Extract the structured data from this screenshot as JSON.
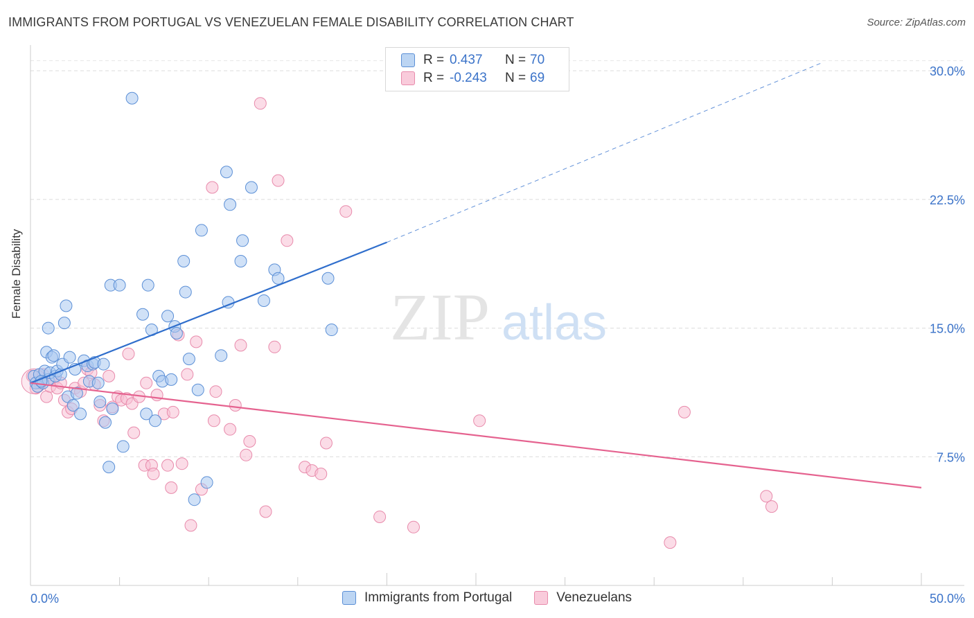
{
  "title": "IMMIGRANTS FROM PORTUGAL VS VENEZUELAN FEMALE DISABILITY CORRELATION CHART",
  "source": "Source: ZipAtlas.com",
  "watermark": {
    "zip": "ZIP",
    "atlas": "atlas"
  },
  "legend": {
    "rows": [
      {
        "r_label": "R =",
        "r_value": "0.437",
        "n_label": "N =",
        "n_value": "70"
      },
      {
        "r_label": "R =",
        "r_value": "-0.243",
        "n_label": "N =",
        "n_value": "69"
      }
    ]
  },
  "bottom_legend": [
    "Immigrants from Portugal",
    "Venezuelans"
  ],
  "chart_data": {
    "type": "scatter",
    "title": "IMMIGRANTS FROM PORTUGAL VS VENEZUELAN FEMALE DISABILITY CORRELATION CHART",
    "xlabel": "",
    "ylabel": "Female Disability",
    "xlim": [
      0,
      50
    ],
    "ylim": [
      0,
      31.5
    ],
    "x_tick_labels": [
      "0.0%",
      "50.0%"
    ],
    "y_ticks": [
      7.5,
      15.0,
      22.5,
      30.0
    ],
    "y_tick_labels": [
      "7.5%",
      "15.0%",
      "22.5%",
      "30.0%"
    ],
    "grid": "horizontal dashed",
    "legend_position": "top-center",
    "colors": {
      "portugal_fill": "#a9c8f0",
      "portugal_stroke": "#5b8fd6",
      "portugal_line": "#2f6ecc",
      "venezuela_fill": "#f7bfd3",
      "venezuela_stroke": "#e88aab",
      "venezuela_line": "#e5628f",
      "accent_text": "#3b73c9"
    },
    "series": [
      {
        "name": "Immigrants from Portugal",
        "r": 0.437,
        "n": 70,
        "trend": {
          "x": [
            0,
            20
          ],
          "y": [
            11.8,
            20.0
          ],
          "dashed_extension_to": [
            44.5,
            30.5
          ]
        },
        "points": [
          [
            0.2,
            12.2
          ],
          [
            0.3,
            11.8
          ],
          [
            0.4,
            11.6
          ],
          [
            0.5,
            12.3
          ],
          [
            0.7,
            11.8
          ],
          [
            0.8,
            12.5
          ],
          [
            0.9,
            13.6
          ],
          [
            1.0,
            12.0
          ],
          [
            1.0,
            15.0
          ],
          [
            1.1,
            12.4
          ],
          [
            1.2,
            13.3
          ],
          [
            1.3,
            13.4
          ],
          [
            1.4,
            12.2
          ],
          [
            1.5,
            12.5
          ],
          [
            1.7,
            12.3
          ],
          [
            1.8,
            12.9
          ],
          [
            1.9,
            15.3
          ],
          [
            2.0,
            16.3
          ],
          [
            2.1,
            11.0
          ],
          [
            2.2,
            13.3
          ],
          [
            2.4,
            10.5
          ],
          [
            2.5,
            12.6
          ],
          [
            2.6,
            11.2
          ],
          [
            2.8,
            10.0
          ],
          [
            3.0,
            13.1
          ],
          [
            3.2,
            12.8
          ],
          [
            3.3,
            11.9
          ],
          [
            3.5,
            12.9
          ],
          [
            3.6,
            13.0
          ],
          [
            3.8,
            11.8
          ],
          [
            3.9,
            10.7
          ],
          [
            4.1,
            12.9
          ],
          [
            4.2,
            9.5
          ],
          [
            4.4,
            6.9
          ],
          [
            4.6,
            10.3
          ],
          [
            4.5,
            17.5
          ],
          [
            5.0,
            17.5
          ],
          [
            5.2,
            8.1
          ],
          [
            5.7,
            28.4
          ],
          [
            6.3,
            15.8
          ],
          [
            6.5,
            10.0
          ],
          [
            6.6,
            17.5
          ],
          [
            6.8,
            14.9
          ],
          [
            7.0,
            9.6
          ],
          [
            7.2,
            12.2
          ],
          [
            7.4,
            11.9
          ],
          [
            7.7,
            15.7
          ],
          [
            7.9,
            12.0
          ],
          [
            8.1,
            15.1
          ],
          [
            8.2,
            14.7
          ],
          [
            8.6,
            18.9
          ],
          [
            8.7,
            17.1
          ],
          [
            8.9,
            13.2
          ],
          [
            9.2,
            5.0
          ],
          [
            9.4,
            11.4
          ],
          [
            9.6,
            20.7
          ],
          [
            9.9,
            6.0
          ],
          [
            10.7,
            13.4
          ],
          [
            11.0,
            24.1
          ],
          [
            11.1,
            16.5
          ],
          [
            11.2,
            22.2
          ],
          [
            11.8,
            18.9
          ],
          [
            11.9,
            20.1
          ],
          [
            12.4,
            23.2
          ],
          [
            13.1,
            16.6
          ],
          [
            13.7,
            18.4
          ],
          [
            13.9,
            17.9
          ],
          [
            16.7,
            17.9
          ],
          [
            16.9,
            14.9
          ],
          [
            0.6,
            11.9
          ]
        ]
      },
      {
        "name": "Venezuelans",
        "r": -0.243,
        "n": 69,
        "trend": {
          "x": [
            0,
            50
          ],
          "y": [
            11.8,
            5.7
          ]
        },
        "points": [
          [
            0.1,
            12.2
          ],
          [
            0.3,
            11.5
          ],
          [
            0.5,
            11.8
          ],
          [
            0.7,
            12.3
          ],
          [
            0.9,
            11.0
          ],
          [
            1.1,
            11.6
          ],
          [
            1.3,
            12.0
          ],
          [
            1.5,
            11.5
          ],
          [
            1.7,
            11.8
          ],
          [
            1.9,
            10.8
          ],
          [
            2.1,
            10.1
          ],
          [
            2.3,
            10.3
          ],
          [
            2.5,
            11.5
          ],
          [
            2.8,
            11.3
          ],
          [
            3.0,
            11.8
          ],
          [
            3.2,
            12.6
          ],
          [
            3.4,
            12.4
          ],
          [
            3.6,
            11.7
          ],
          [
            3.9,
            10.5
          ],
          [
            4.1,
            9.6
          ],
          [
            4.4,
            12.2
          ],
          [
            4.6,
            10.4
          ],
          [
            4.9,
            11.0
          ],
          [
            5.1,
            10.8
          ],
          [
            5.4,
            10.9
          ],
          [
            5.5,
            13.5
          ],
          [
            5.7,
            10.6
          ],
          [
            5.8,
            8.9
          ],
          [
            6.1,
            11.0
          ],
          [
            6.4,
            7.0
          ],
          [
            6.5,
            11.8
          ],
          [
            6.8,
            7.0
          ],
          [
            6.9,
            6.5
          ],
          [
            7.1,
            11.1
          ],
          [
            7.5,
            10.0
          ],
          [
            7.7,
            7.0
          ],
          [
            7.9,
            5.7
          ],
          [
            8.0,
            10.1
          ],
          [
            8.3,
            14.6
          ],
          [
            8.5,
            7.1
          ],
          [
            8.8,
            12.3
          ],
          [
            9.0,
            3.5
          ],
          [
            9.3,
            14.2
          ],
          [
            9.6,
            5.6
          ],
          [
            10.2,
            23.2
          ],
          [
            10.3,
            9.6
          ],
          [
            10.4,
            11.3
          ],
          [
            11.2,
            9.1
          ],
          [
            11.5,
            10.5
          ],
          [
            11.8,
            14.0
          ],
          [
            12.1,
            7.6
          ],
          [
            12.3,
            8.4
          ],
          [
            12.9,
            28.1
          ],
          [
            13.2,
            4.3
          ],
          [
            13.7,
            13.9
          ],
          [
            13.9,
            23.6
          ],
          [
            14.4,
            20.1
          ],
          [
            15.4,
            6.9
          ],
          [
            15.8,
            6.7
          ],
          [
            16.3,
            6.5
          ],
          [
            16.6,
            8.3
          ],
          [
            17.7,
            21.8
          ],
          [
            19.6,
            4.0
          ],
          [
            21.5,
            3.4
          ],
          [
            25.2,
            9.6
          ],
          [
            35.9,
            2.5
          ],
          [
            36.7,
            10.1
          ],
          [
            41.3,
            5.2
          ],
          [
            41.6,
            4.6
          ]
        ]
      }
    ]
  }
}
